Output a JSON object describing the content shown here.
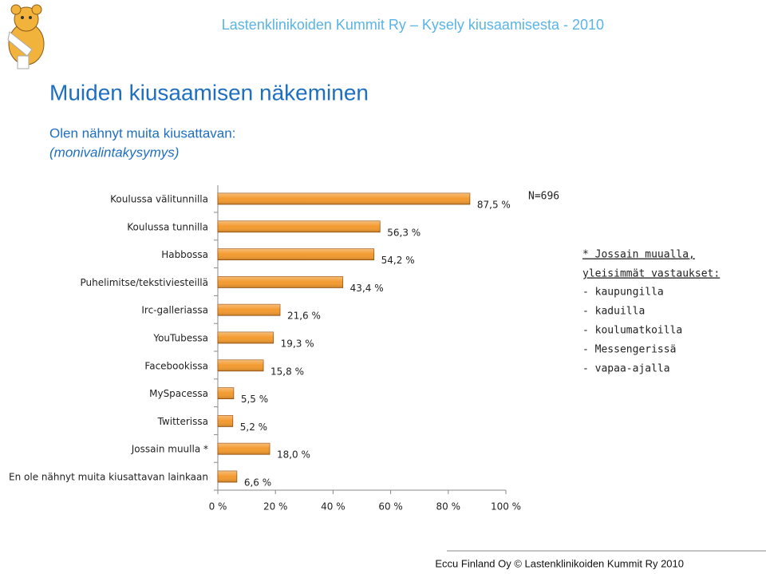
{
  "header": "Lastenklinikoiden Kummit Ry – Kysely kiusaamisesta - 2010",
  "title": "Muiden kiusaamisen näkeminen",
  "subtitle": [
    "Olen nähnyt muita kiusattavan:",
    "(monivalintakysymys)"
  ],
  "chart_data": {
    "type": "hbar",
    "categories": [
      "Koulussa välitunnilla",
      "Koulussa tunnilla",
      "Habbossa",
      "Puhelimitse/tekstiviesteillä",
      "Irc-galleriassa",
      "YouTubessa",
      "Facebookissa",
      "MySpacessa",
      "Twitterissa",
      "Jossain muulla *",
      "En ole nähnyt muita kiusattavan lainkaan"
    ],
    "values": [
      87.5,
      56.3,
      54.2,
      43.4,
      21.6,
      19.3,
      15.8,
      5.5,
      5.2,
      18.0,
      6.6
    ],
    "value_labels": [
      "87,5 %",
      "56,3 %",
      "54,2 %",
      "43,4 %",
      "21,6 %",
      "19,3 %",
      "15,8 %",
      "5,5 %",
      "5,2 %",
      "18,0 %",
      "6,6 %"
    ],
    "color": "#f39a2e",
    "xlim": [
      0,
      100
    ],
    "xticks": [
      {
        "value": 0,
        "label": "0 %"
      },
      {
        "value": 20,
        "label": "20 %"
      },
      {
        "value": 40,
        "label": "40 %"
      },
      {
        "value": 60,
        "label": "60 %"
      },
      {
        "value": 80,
        "label": "80 %"
      },
      {
        "value": 100,
        "label": "100 %"
      }
    ],
    "annotations": [
      "N=696"
    ]
  },
  "note": {
    "heading": [
      "* Jossain muualla,",
      "yleisimmät vastaukset:"
    ],
    "items": [
      "- kaupungilla",
      "- kaduilla",
      "- koulumatkoilla",
      "- Messengerissä",
      "- vapaa-ajalla"
    ]
  },
  "footer": "Eccu Finland Oy © Lastenklinikoiden Kummit Ry 2010"
}
